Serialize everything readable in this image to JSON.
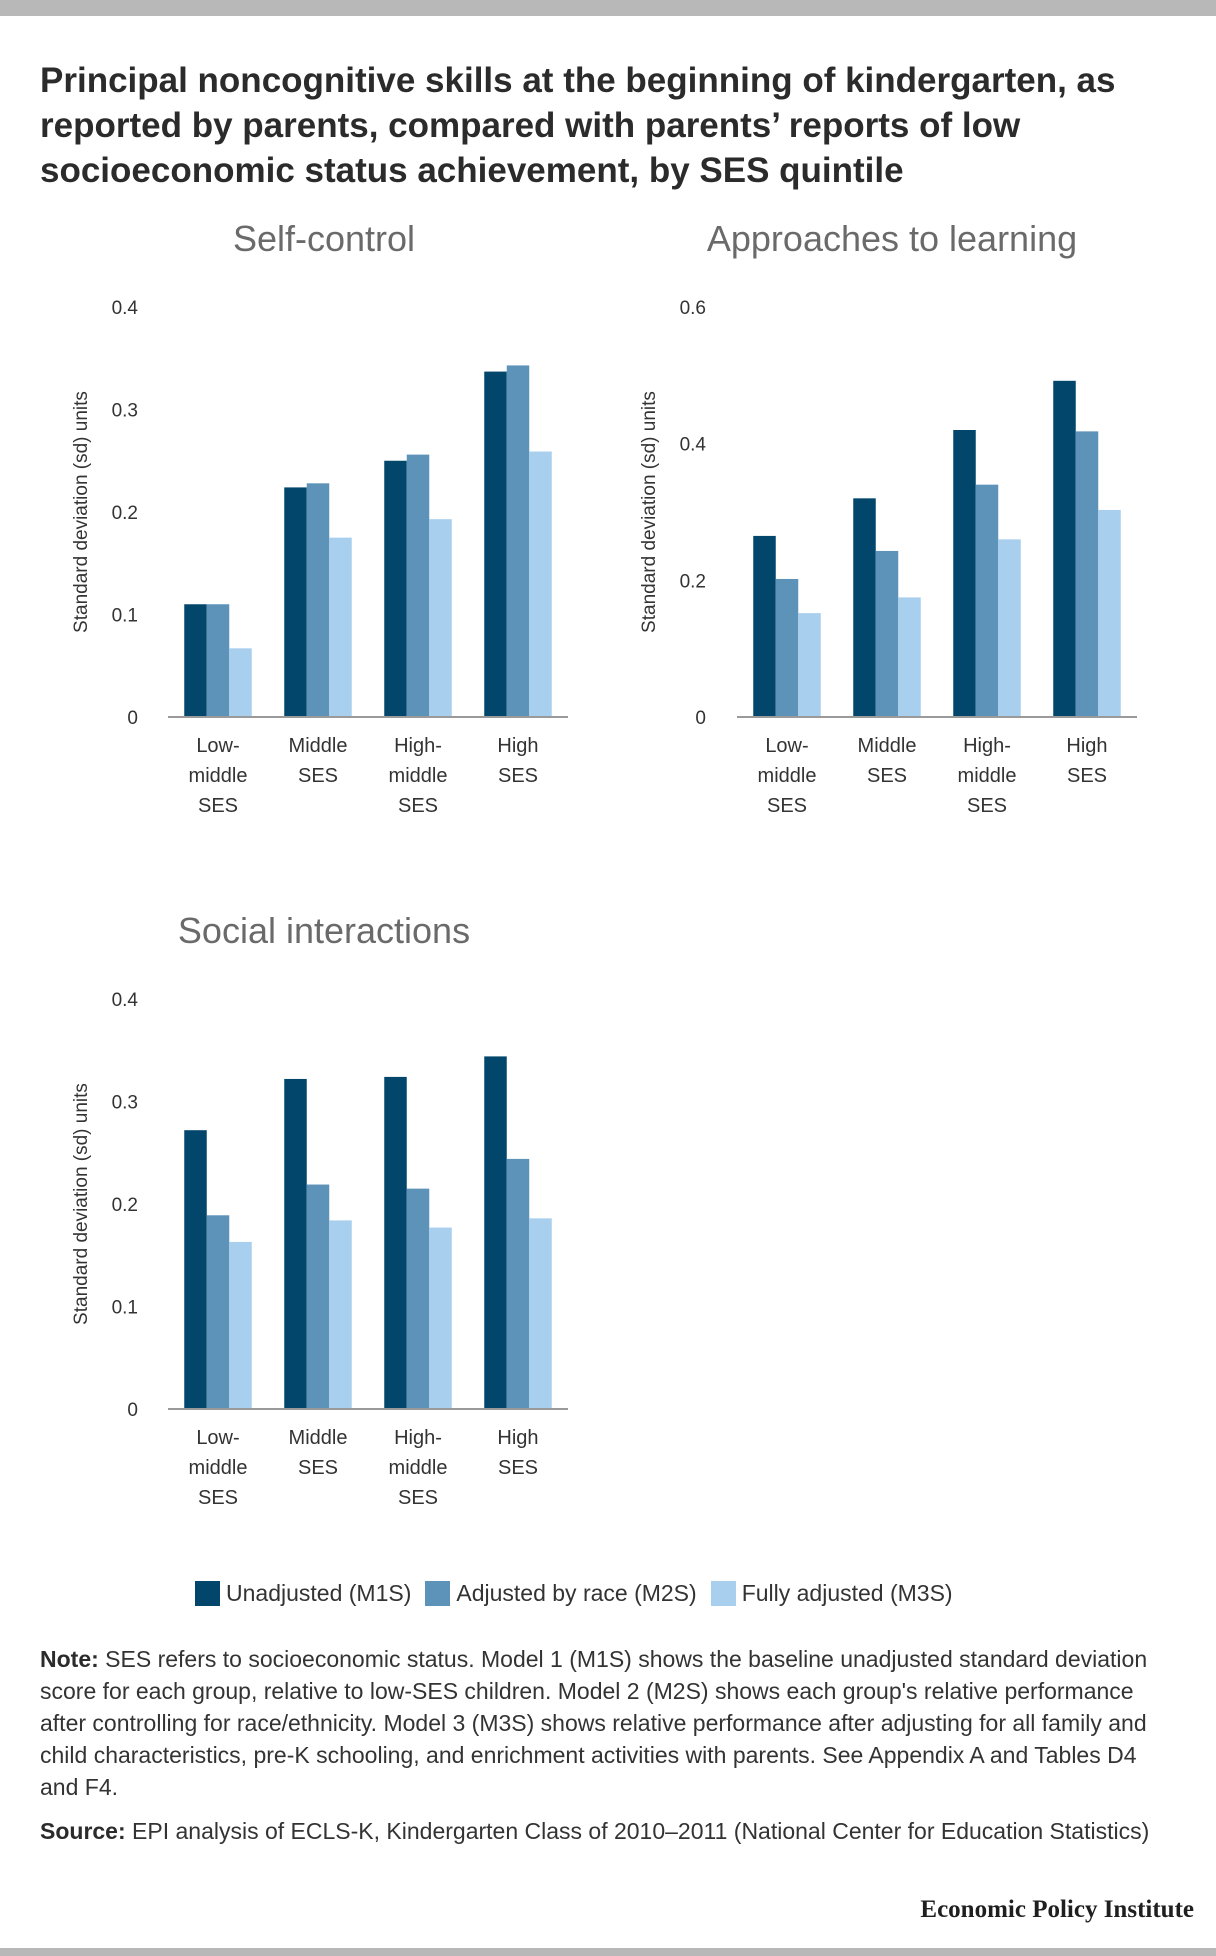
{
  "title": "Principal noncognitive skills at the beginning of kindergarten, as reported by parents, compared with parents’ reports of low socioeconomic status achievement, by SES quintile",
  "colors": {
    "m1s": "#03466b",
    "m2s": "#5d93b8",
    "m3s": "#a9cfee",
    "axis": "#9a9a9a"
  },
  "legend": [
    {
      "label": "Unadjusted (M1S)",
      "color": "#03466b"
    },
    {
      "label": "Adjusted by race (M2S)",
      "color": "#5d93b8"
    },
    {
      "label": "Fully adjusted (M3S)",
      "color": "#a9cfee"
    }
  ],
  "chart_data": [
    {
      "type": "bar",
      "title": "Self-control",
      "ylabel": "Standard deviation (sd) units",
      "ylim": [
        0,
        0.4
      ],
      "yticks": [
        "0",
        "0.1",
        "0.2",
        "0.3",
        "0.4"
      ],
      "categories": [
        [
          "Low-",
          "middle",
          "SES"
        ],
        [
          "Middle",
          "SES"
        ],
        [
          "High-",
          "middle",
          "SES"
        ],
        [
          "High",
          "SES"
        ]
      ],
      "series": [
        {
          "name": "Unadjusted (M1S)",
          "values": [
            0.11,
            0.224,
            0.25,
            0.337
          ]
        },
        {
          "name": "Adjusted by race (M2S)",
          "values": [
            0.11,
            0.228,
            0.256,
            0.343
          ]
        },
        {
          "name": "Fully adjusted (M3S)",
          "values": [
            0.067,
            0.175,
            0.193,
            0.259
          ]
        }
      ]
    },
    {
      "type": "bar",
      "title": "Approaches to learning",
      "ylabel": "Standard deviation (sd) units",
      "ylim": [
        0,
        0.6
      ],
      "yticks": [
        "0",
        "0.2",
        "0.4",
        "0.6"
      ],
      "categories": [
        [
          "Low-",
          "middle",
          "SES"
        ],
        [
          "Middle",
          "SES"
        ],
        [
          "High-",
          "middle",
          "SES"
        ],
        [
          "High",
          "SES"
        ]
      ],
      "series": [
        {
          "name": "Unadjusted (M1S)",
          "values": [
            0.265,
            0.32,
            0.42,
            0.492
          ]
        },
        {
          "name": "Adjusted by race (M2S)",
          "values": [
            0.202,
            0.243,
            0.34,
            0.418
          ]
        },
        {
          "name": "Fully adjusted (M3S)",
          "values": [
            0.152,
            0.175,
            0.26,
            0.303
          ]
        }
      ]
    },
    {
      "type": "bar",
      "title": "Social interactions",
      "ylabel": "Standard deviation (sd) units",
      "ylim": [
        0,
        0.4
      ],
      "yticks": [
        "0",
        "0.1",
        "0.2",
        "0.3",
        "0.4"
      ],
      "categories": [
        [
          "Low-",
          "middle",
          "SES"
        ],
        [
          "Middle",
          "SES"
        ],
        [
          "High-",
          "middle",
          "SES"
        ],
        [
          "High",
          "SES"
        ]
      ],
      "series": [
        {
          "name": "Unadjusted (M1S)",
          "values": [
            0.272,
            0.322,
            0.324,
            0.344
          ]
        },
        {
          "name": "Adjusted by race (M2S)",
          "values": [
            0.189,
            0.219,
            0.215,
            0.244
          ]
        },
        {
          "name": "Fully adjusted (M3S)",
          "values": [
            0.163,
            0.184,
            0.177,
            0.186
          ]
        }
      ]
    }
  ],
  "note": {
    "label": "Note:",
    "text": " SES refers to socioeconomic status. Model 1 (M1S) shows the baseline unadjusted standard deviation score for each group, relative to low-SES children. Model 2 (M2S) shows each group's relative performance after controlling for race/ethnicity. Model 3 (M3S) shows relative performance after adjusting for all family and child characteristics, pre-K schooling, and enrichment activities with parents. See Appendix A and Tables D4 and F4."
  },
  "source": {
    "label": "Source:",
    "text": " EPI analysis of ECLS-K, Kindergarten Class of 2010–2011 (National Center for Education Statistics)"
  },
  "brand": "Economic Policy Institute"
}
